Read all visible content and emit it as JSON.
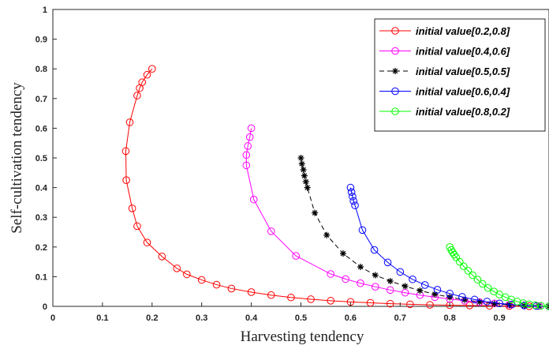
{
  "chart_data": {
    "type": "line",
    "title": "",
    "xlabel": "Harvesting tendency",
    "ylabel": "Self-cultivation tendency",
    "xlim": [
      0,
      1
    ],
    "ylim": [
      0,
      1
    ],
    "xticks": [
      "0",
      "0.1",
      "0.2",
      "0.3",
      "0.4",
      "0.5",
      "0.6",
      "0.7",
      "0.8",
      "0.9"
    ],
    "yticks": [
      "0",
      "0.1",
      "0.2",
      "0.3",
      "0.4",
      "0.5",
      "0.6",
      "0.7",
      "0.8",
      "0.9",
      "1"
    ],
    "grid": false,
    "legend_position": "top-right",
    "series": [
      {
        "name": "initial value[0.2,0.8]",
        "color": "#ff0000",
        "marker": "circle",
        "line_style": "solid",
        "points": [
          [
            0.2,
            0.8
          ],
          [
            0.19,
            0.78
          ],
          [
            0.18,
            0.755
          ],
          [
            0.175,
            0.735
          ],
          [
            0.17,
            0.71
          ],
          [
            0.155,
            0.62
          ],
          [
            0.147,
            0.523
          ],
          [
            0.148,
            0.425
          ],
          [
            0.16,
            0.33
          ],
          [
            0.17,
            0.27
          ],
          [
            0.19,
            0.215
          ],
          [
            0.22,
            0.168
          ],
          [
            0.25,
            0.128
          ],
          [
            0.27,
            0.108
          ],
          [
            0.3,
            0.089
          ],
          [
            0.33,
            0.073
          ],
          [
            0.36,
            0.06
          ],
          [
            0.4,
            0.048
          ],
          [
            0.44,
            0.038
          ],
          [
            0.48,
            0.03
          ],
          [
            0.52,
            0.024
          ],
          [
            0.56,
            0.019
          ],
          [
            0.6,
            0.015
          ],
          [
            0.64,
            0.012
          ],
          [
            0.68,
            0.009
          ],
          [
            0.72,
            0.007
          ],
          [
            0.76,
            0.005
          ],
          [
            0.8,
            0.004
          ],
          [
            0.84,
            0.003
          ],
          [
            0.88,
            0.002
          ],
          [
            0.92,
            0.001
          ],
          [
            0.96,
            0.0005
          ],
          [
            1.0,
            0.0
          ]
        ]
      },
      {
        "name": "initial value[0.4,0.6]",
        "color": "#ff00ff",
        "marker": "circle",
        "line_style": "solid",
        "points": [
          [
            0.4,
            0.6
          ],
          [
            0.397,
            0.57
          ],
          [
            0.393,
            0.54
          ],
          [
            0.39,
            0.51
          ],
          [
            0.39,
            0.475
          ],
          [
            0.405,
            0.36
          ],
          [
            0.44,
            0.253
          ],
          [
            0.49,
            0.17
          ],
          [
            0.56,
            0.109
          ],
          [
            0.59,
            0.092
          ],
          [
            0.62,
            0.078
          ],
          [
            0.65,
            0.066
          ],
          [
            0.68,
            0.055
          ],
          [
            0.71,
            0.046
          ],
          [
            0.74,
            0.038
          ],
          [
            0.77,
            0.031
          ],
          [
            0.8,
            0.025
          ],
          [
            0.83,
            0.019
          ],
          [
            0.86,
            0.014
          ],
          [
            0.89,
            0.01
          ],
          [
            0.92,
            0.006
          ],
          [
            0.95,
            0.003
          ],
          [
            0.98,
            0.001
          ],
          [
            1.0,
            0.0
          ]
        ]
      },
      {
        "name": "initial value[0.5,0.5]",
        "color": "#000000",
        "marker": "asterisk",
        "line_style": "dashed",
        "points": [
          [
            0.5,
            0.5
          ],
          [
            0.502,
            0.48
          ],
          [
            0.505,
            0.46
          ],
          [
            0.507,
            0.44
          ],
          [
            0.51,
            0.42
          ],
          [
            0.513,
            0.4
          ],
          [
            0.528,
            0.315
          ],
          [
            0.552,
            0.24
          ],
          [
            0.585,
            0.178
          ],
          [
            0.62,
            0.133
          ],
          [
            0.65,
            0.105
          ],
          [
            0.68,
            0.085
          ],
          [
            0.71,
            0.068
          ],
          [
            0.74,
            0.053
          ],
          [
            0.77,
            0.041
          ],
          [
            0.8,
            0.031
          ],
          [
            0.83,
            0.022
          ],
          [
            0.86,
            0.015
          ],
          [
            0.89,
            0.009
          ],
          [
            0.92,
            0.005
          ],
          [
            0.95,
            0.002
          ],
          [
            0.98,
            0.001
          ],
          [
            1.0,
            0.0
          ]
        ]
      },
      {
        "name": "initial value[0.6,0.4]",
        "color": "#0000ff",
        "marker": "circle",
        "line_style": "solid",
        "points": [
          [
            0.6,
            0.4
          ],
          [
            0.602,
            0.385
          ],
          [
            0.604,
            0.37
          ],
          [
            0.606,
            0.355
          ],
          [
            0.609,
            0.34
          ],
          [
            0.624,
            0.257
          ],
          [
            0.648,
            0.19
          ],
          [
            0.675,
            0.148
          ],
          [
            0.7,
            0.116
          ],
          [
            0.725,
            0.091
          ],
          [
            0.75,
            0.072
          ],
          [
            0.775,
            0.056
          ],
          [
            0.8,
            0.043
          ],
          [
            0.825,
            0.032
          ],
          [
            0.85,
            0.023
          ],
          [
            0.875,
            0.016
          ],
          [
            0.9,
            0.01
          ],
          [
            0.925,
            0.006
          ],
          [
            0.95,
            0.003
          ],
          [
            0.975,
            0.001
          ],
          [
            1.0,
            0.0
          ]
        ]
      },
      {
        "name": "initial value[0.8,0.2]",
        "color": "#00ff00",
        "marker": "circle",
        "line_style": "solid",
        "points": [
          [
            0.8,
            0.2
          ],
          [
            0.803,
            0.19
          ],
          [
            0.806,
            0.182
          ],
          [
            0.809,
            0.174
          ],
          [
            0.813,
            0.165
          ],
          [
            0.82,
            0.15
          ],
          [
            0.828,
            0.135
          ],
          [
            0.837,
            0.12
          ],
          [
            0.846,
            0.105
          ],
          [
            0.856,
            0.09
          ],
          [
            0.866,
            0.076
          ],
          [
            0.877,
            0.062
          ],
          [
            0.889,
            0.05
          ],
          [
            0.9,
            0.04
          ],
          [
            0.912,
            0.031
          ],
          [
            0.924,
            0.023
          ],
          [
            0.936,
            0.016
          ],
          [
            0.948,
            0.011
          ],
          [
            0.96,
            0.007
          ],
          [
            0.972,
            0.004
          ],
          [
            0.984,
            0.002
          ],
          [
            1.0,
            0.0
          ]
        ]
      }
    ]
  }
}
